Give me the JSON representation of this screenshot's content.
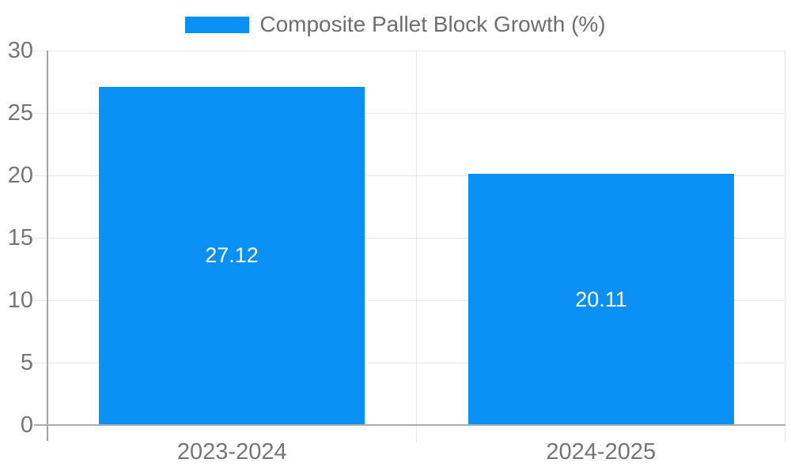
{
  "legend": {
    "label": "Composite Pallet Block Growth (%)"
  },
  "chart_data": {
    "type": "bar",
    "title": "Composite Pallet Block Growth (%)",
    "categories": [
      "2023-2024",
      "2024-2025"
    ],
    "values": [
      27.12,
      20.11
    ],
    "value_labels": [
      "27.12",
      "20.11"
    ],
    "xlabel": "",
    "ylabel": "",
    "ylim": [
      0,
      30
    ],
    "yticks": [
      0,
      5,
      10,
      15,
      20,
      25,
      30
    ],
    "grid": true,
    "legend_position": "top-center",
    "bar_width_fraction": 0.72,
    "bar_color": "#0a8ff5",
    "value_label_color": "#ffffff"
  },
  "colors": {
    "accent_blue": "#0a8ff5",
    "gridline": "#e6e6e6",
    "axis_line": "#a9a9a9",
    "tick_text": "#757575",
    "legend_text": "#6e6e6e",
    "background": "#ffffff"
  }
}
